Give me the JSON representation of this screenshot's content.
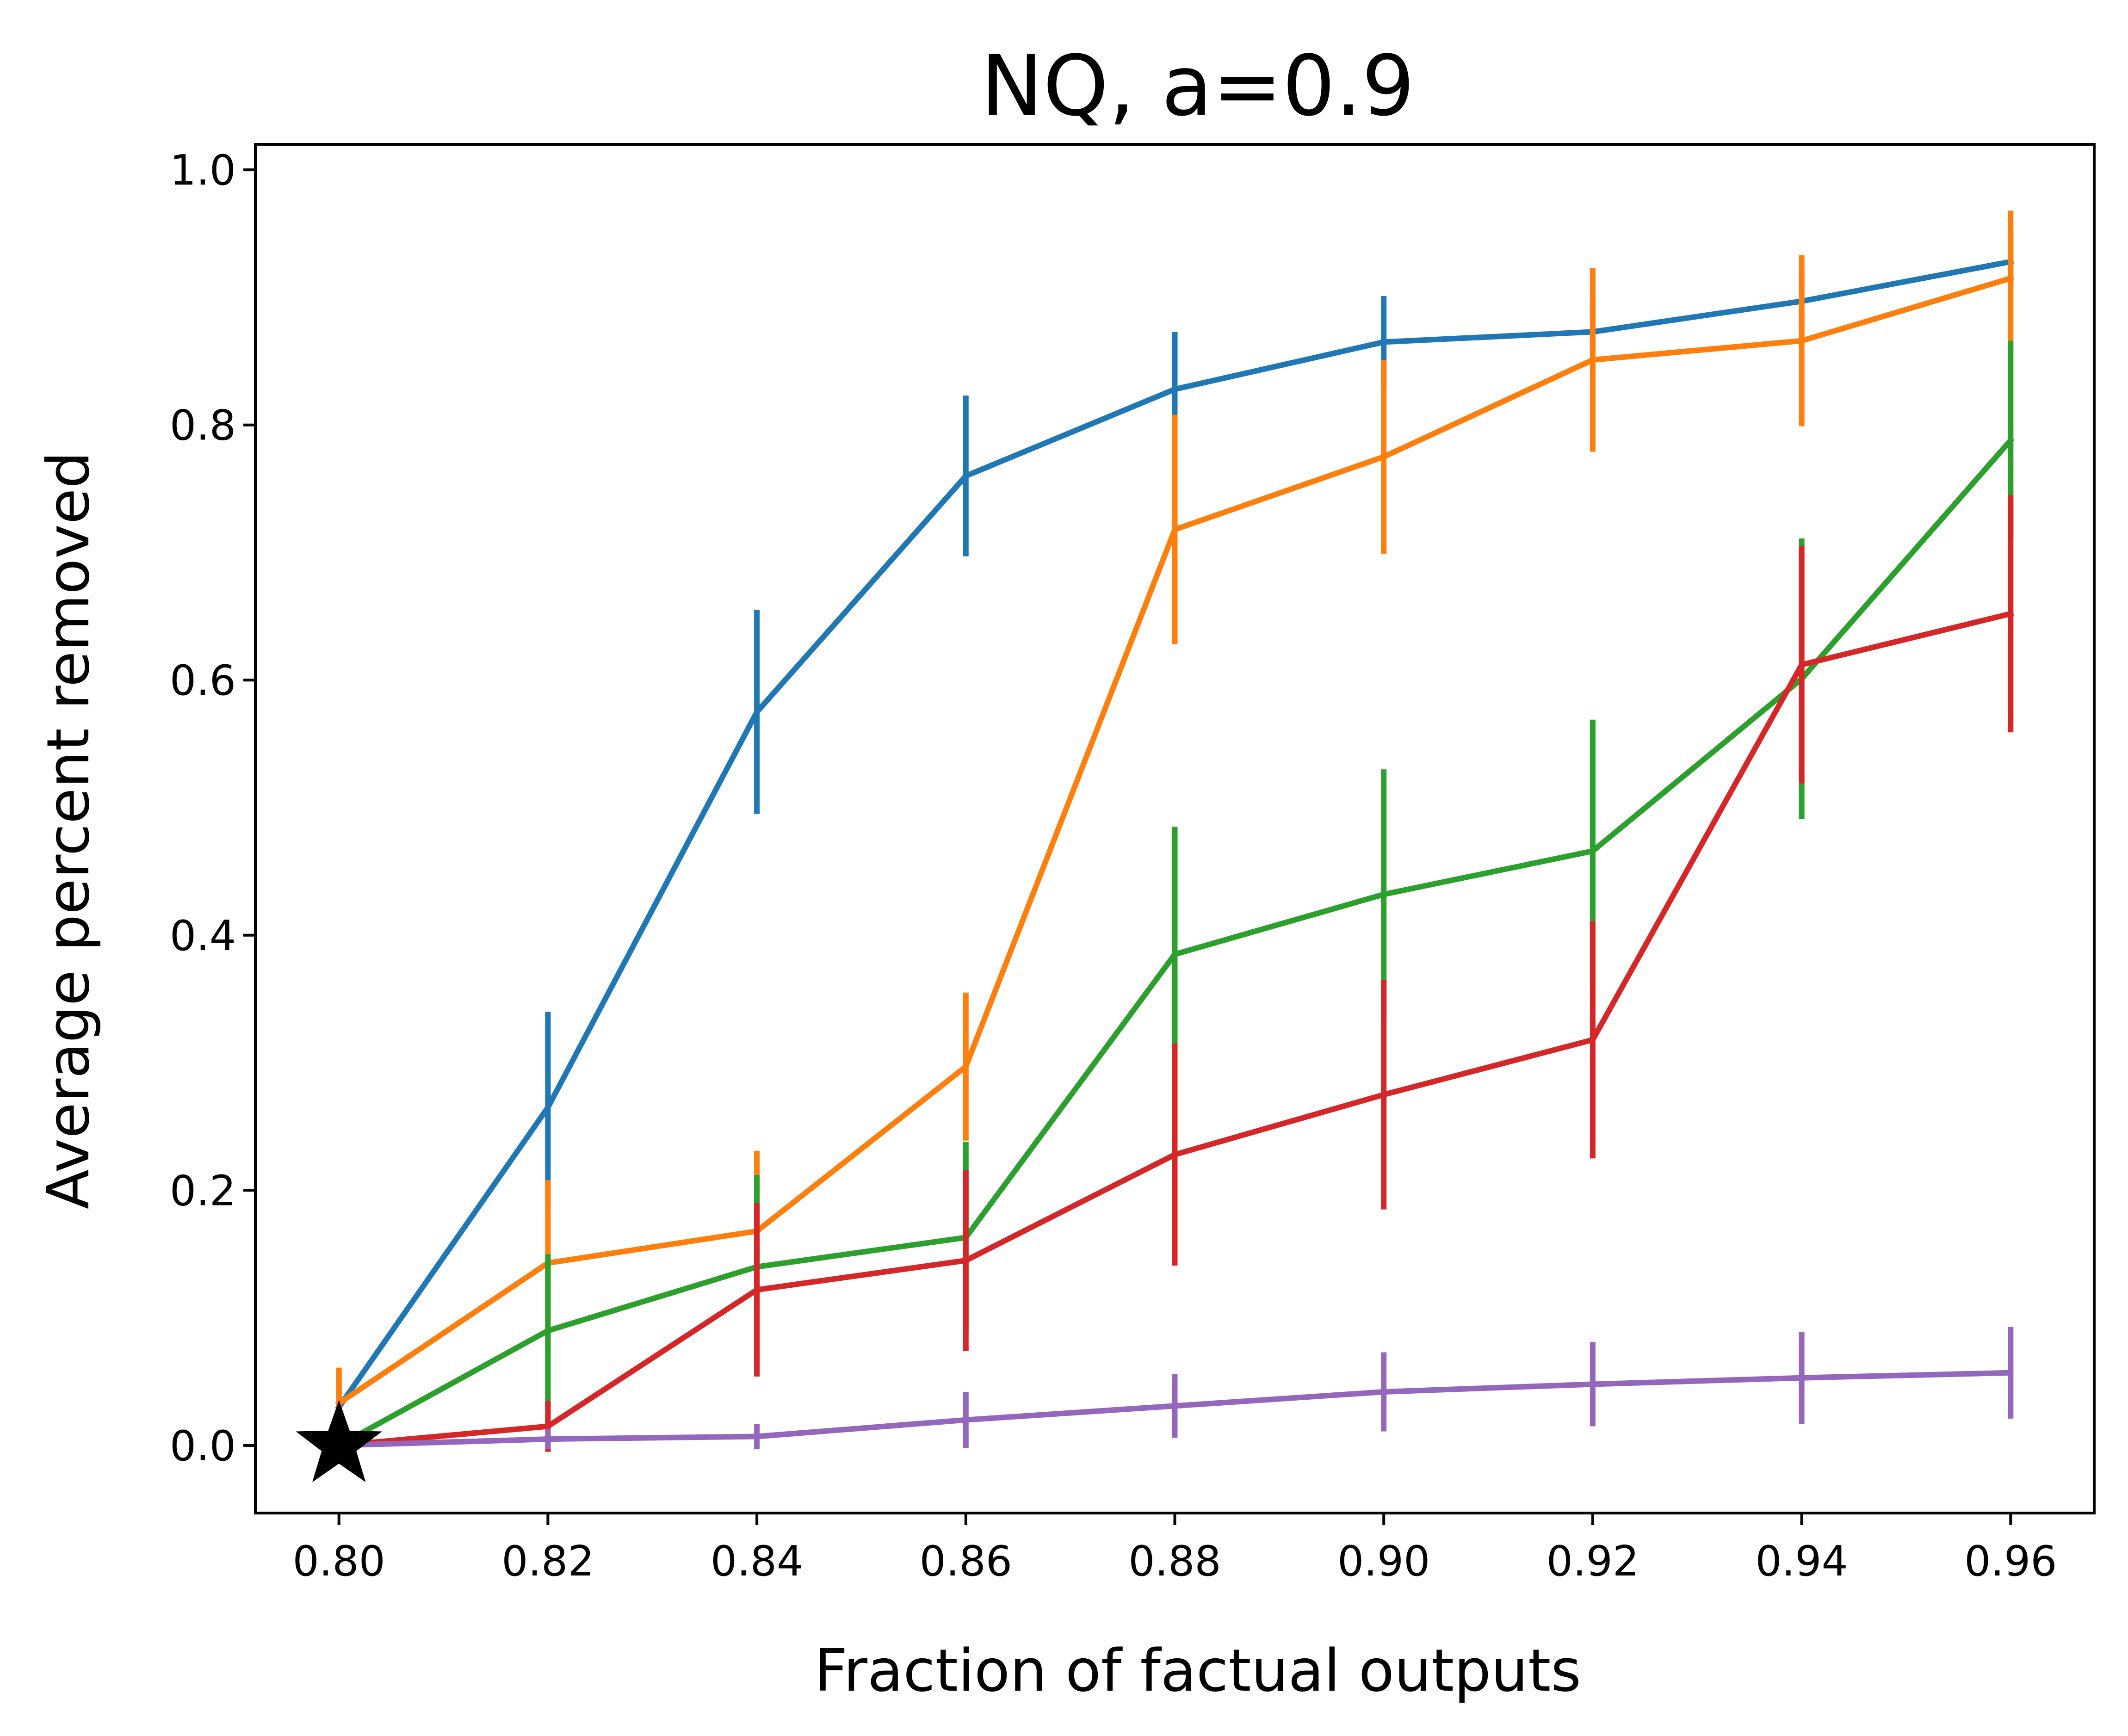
{
  "chart_data": {
    "type": "line",
    "title": "NQ, a=0.9",
    "xlabel": "Fraction of factual outputs",
    "ylabel": "Average percent removed",
    "xlim": [
      0.792,
      0.968
    ],
    "ylim": [
      -0.053,
      1.02
    ],
    "x": [
      0.8,
      0.82,
      0.84,
      0.86,
      0.88,
      0.9,
      0.92,
      0.94,
      0.96
    ],
    "x_ticks": [
      "0.80",
      "0.82",
      "0.84",
      "0.86",
      "0.88",
      "0.90",
      "0.92",
      "0.94",
      "0.96"
    ],
    "y_tick_values": [
      0.0,
      0.2,
      0.4,
      0.6,
      0.8,
      1.0
    ],
    "y_ticks": [
      "0.0",
      "0.2",
      "0.4",
      "0.6",
      "0.8",
      "1.0"
    ],
    "grid": false,
    "legend": "none",
    "series": [
      {
        "name": "blue",
        "color": "#1f77b4",
        "values": [
          0.03,
          0.265,
          0.575,
          0.76,
          0.828,
          0.865,
          0.873,
          0.897,
          0.928
        ],
        "errors": [
          0.028,
          0.075,
          0.08,
          0.063,
          0.045,
          0.036,
          0.025,
          0.025,
          0.02
        ]
      },
      {
        "name": "orange",
        "color": "#ff7f0e",
        "values": [
          0.033,
          0.143,
          0.168,
          0.297,
          0.718,
          0.775,
          0.851,
          0.866,
          0.915
        ],
        "errors": [
          0.028,
          0.065,
          0.063,
          0.058,
          0.09,
          0.076,
          0.072,
          0.067,
          0.053
        ]
      },
      {
        "name": "green",
        "color": "#2ca02c",
        "values": [
          0.0,
          0.09,
          0.14,
          0.163,
          0.385,
          0.432,
          0.466,
          0.601,
          0.788
        ],
        "errors": [
          0.0,
          0.06,
          0.072,
          0.075,
          0.1,
          0.098,
          0.103,
          0.11,
          0.078
        ]
      },
      {
        "name": "red",
        "color": "#d62728",
        "values": [
          0.0,
          0.015,
          0.122,
          0.145,
          0.228,
          0.275,
          0.318,
          0.612,
          0.652
        ],
        "errors": [
          0.0,
          0.02,
          0.068,
          0.071,
          0.087,
          0.09,
          0.093,
          0.093,
          0.093
        ]
      },
      {
        "name": "purple",
        "color": "#9467bd",
        "values": [
          0.0,
          0.005,
          0.007,
          0.02,
          0.031,
          0.042,
          0.048,
          0.053,
          0.057
        ],
        "errors": [
          0.0,
          0.008,
          0.01,
          0.022,
          0.025,
          0.031,
          0.033,
          0.036,
          0.036
        ]
      }
    ],
    "marker": {
      "type": "star",
      "x": 0.8,
      "y": 0.0,
      "color": "#000000"
    }
  }
}
